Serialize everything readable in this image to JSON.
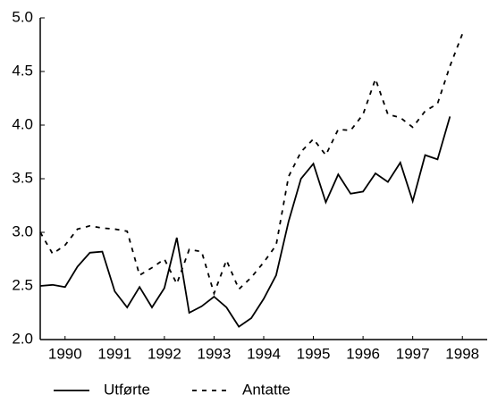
{
  "chart_data": {
    "type": "line",
    "x": [
      1990,
      1990.25,
      1990.5,
      1990.75,
      1991,
      1991.25,
      1991.5,
      1991.75,
      1992,
      1992.25,
      1992.5,
      1992.75,
      1993,
      1993.25,
      1993.5,
      1993.75,
      1994,
      1994.25,
      1994.5,
      1994.75,
      1995,
      1995.25,
      1995.5,
      1995.75,
      1996,
      1996.25,
      1996.5,
      1996.75,
      1997,
      1997.25,
      1997.5,
      1997.75,
      1998,
      1998.25,
      1998.5
    ],
    "series": [
      {
        "name": "Utførte",
        "color": "#000000",
        "dash": "solid",
        "values": [
          2.5,
          2.51,
          2.49,
          2.68,
          2.81,
          2.82,
          2.45,
          2.3,
          2.49,
          2.3,
          2.48,
          2.95,
          2.25,
          2.31,
          2.4,
          2.3,
          2.12,
          2.2,
          2.38,
          2.6,
          3.1,
          3.5,
          3.64,
          3.28,
          3.54,
          3.36,
          3.38,
          3.55,
          3.47,
          3.65,
          3.29,
          3.72,
          3.68,
          4.08,
          null
        ]
      },
      {
        "name": "Antatte",
        "color": "#000000",
        "dash": "dashed",
        "values": [
          3.0,
          2.8,
          2.88,
          3.03,
          3.06,
          3.04,
          3.03,
          3.01,
          2.6,
          2.67,
          2.75,
          2.52,
          2.84,
          2.82,
          2.43,
          2.74,
          2.47,
          2.58,
          2.72,
          2.88,
          3.52,
          3.75,
          3.87,
          3.72,
          3.96,
          3.95,
          4.1,
          4.43,
          4.1,
          4.07,
          3.98,
          4.13,
          4.2,
          4.55,
          4.85
        ]
      }
    ],
    "xlim": [
      1990,
      1999
    ],
    "xticks": [
      {
        "value": 1990.5,
        "label": "1990"
      },
      {
        "value": 1991.5,
        "label": "1991"
      },
      {
        "value": 1992.5,
        "label": "1992"
      },
      {
        "value": 1993.5,
        "label": "1993"
      },
      {
        "value": 1994.5,
        "label": "1994"
      },
      {
        "value": 1995.5,
        "label": "1995"
      },
      {
        "value": 1996.5,
        "label": "1996"
      },
      {
        "value": 1997.5,
        "label": "1997"
      },
      {
        "value": 1998.5,
        "label": "1998"
      }
    ],
    "ylim": [
      2.0,
      5.0
    ],
    "yticks": [
      {
        "value": 2.0,
        "label": "2.0"
      },
      {
        "value": 2.5,
        "label": "2.5"
      },
      {
        "value": 3.0,
        "label": "3.0"
      },
      {
        "value": 3.5,
        "label": "3.5"
      },
      {
        "value": 4.0,
        "label": "4.0"
      },
      {
        "value": 4.5,
        "label": "4.5"
      },
      {
        "value": 5.0,
        "label": "5.0"
      }
    ],
    "grid": false,
    "legend": "bottom"
  }
}
